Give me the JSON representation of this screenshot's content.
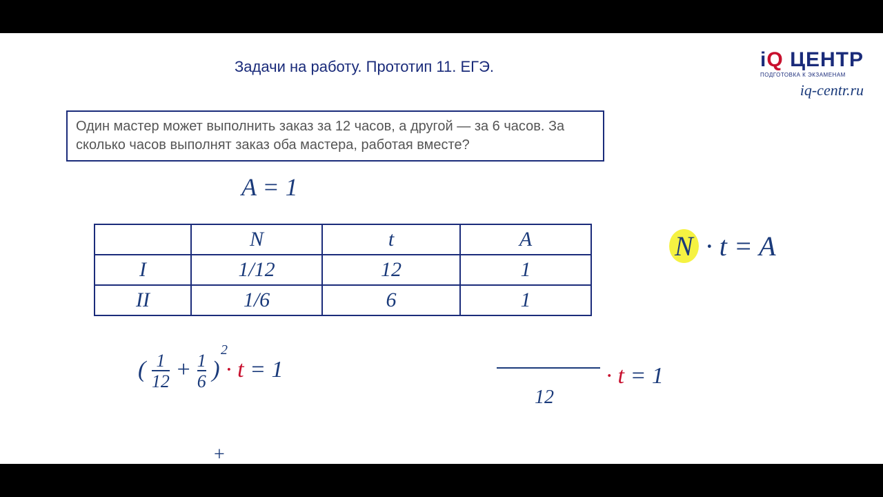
{
  "title": "Задачи на работу. Прототип 11. ЕГЭ.",
  "logo": {
    "i": "i",
    "q": "Q",
    "text": " ЦЕНТР",
    "sub": "ПОДГОТОВКА К ЭКЗАМЕНАМ",
    "url": "iq-centr.ru"
  },
  "problem": "Один мастер может выполнить заказ за 12 часов, а другой — за 6 часов. За сколько часов выполнят заказ оба мастера, работая вместе?",
  "eq_a": "A = 1",
  "table": {
    "headers": [
      "",
      "N",
      "t",
      "A"
    ],
    "rows": [
      [
        "I",
        "1/12",
        "12",
        "1"
      ],
      [
        "II",
        "1/6",
        "6",
        "1"
      ]
    ]
  },
  "formula": {
    "n": "N",
    "dot": " · ",
    "t": "t",
    "eq": " = ",
    "a": "A"
  },
  "eq_left": {
    "lparen": "(",
    "f1n": "1",
    "f1d": "12",
    "plus": " + ",
    "f2n": "1",
    "f2d": "6",
    "rparen": ")",
    "dot": " · ",
    "t": "t",
    "eq": " = 1",
    "super": "2"
  },
  "eq_right": {
    "dot": " · ",
    "t": "t",
    "eq": " = 1",
    "den": "12"
  },
  "tick": "+"
}
